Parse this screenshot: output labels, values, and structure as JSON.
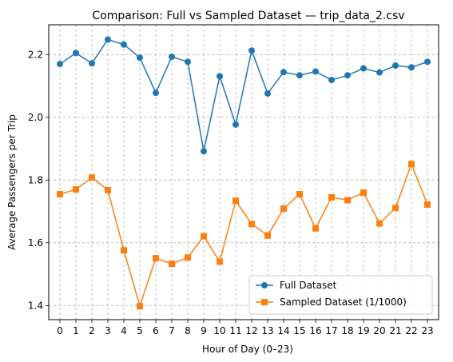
{
  "chart_data": {
    "type": "line",
    "title": "Comparison: Full vs Sampled Dataset — trip_data_2.csv",
    "xlabel": "Hour of Day (0–23)",
    "ylabel": "Average Passengers per Trip",
    "x": [
      0,
      1,
      2,
      3,
      4,
      5,
      6,
      7,
      8,
      9,
      10,
      11,
      12,
      13,
      14,
      15,
      16,
      17,
      18,
      19,
      20,
      21,
      22,
      23
    ],
    "x_tick_labels": [
      "0",
      "1",
      "2",
      "3",
      "4",
      "5",
      "6",
      "7",
      "8",
      "9",
      "10",
      "11",
      "12",
      "13",
      "14",
      "15",
      "16",
      "17",
      "18",
      "19",
      "20",
      "21",
      "22",
      "23"
    ],
    "y_ticks": [
      1.4,
      1.6,
      1.8,
      2.0,
      2.2
    ],
    "y_tick_labels": [
      "1.4",
      "1.6",
      "1.8",
      "2.0",
      "2.2"
    ],
    "xlim": [
      -0.7,
      23.7
    ],
    "ylim": [
      1.355,
      2.295
    ],
    "grid": true,
    "legend_position": "lower-right",
    "series": [
      {
        "name": "Full Dataset",
        "marker": "circle",
        "color": "#1f77b4",
        "values": [
          2.17,
          2.205,
          2.172,
          2.248,
          2.232,
          2.19,
          2.078,
          2.193,
          2.177,
          1.892,
          2.131,
          1.977,
          2.213,
          2.076,
          2.144,
          2.134,
          2.146,
          2.119,
          2.134,
          2.156,
          2.143,
          2.165,
          2.159,
          2.177
        ]
      },
      {
        "name": "Sampled Dataset (1/1000)",
        "marker": "square",
        "color": "#ff7f0e",
        "values": [
          1.755,
          1.77,
          1.808,
          1.768,
          1.576,
          1.398,
          1.551,
          1.533,
          1.553,
          1.621,
          1.54,
          1.734,
          1.66,
          1.623,
          1.709,
          1.755,
          1.646,
          1.745,
          1.736,
          1.76,
          1.662,
          1.711,
          1.851,
          1.722
        ]
      }
    ]
  }
}
